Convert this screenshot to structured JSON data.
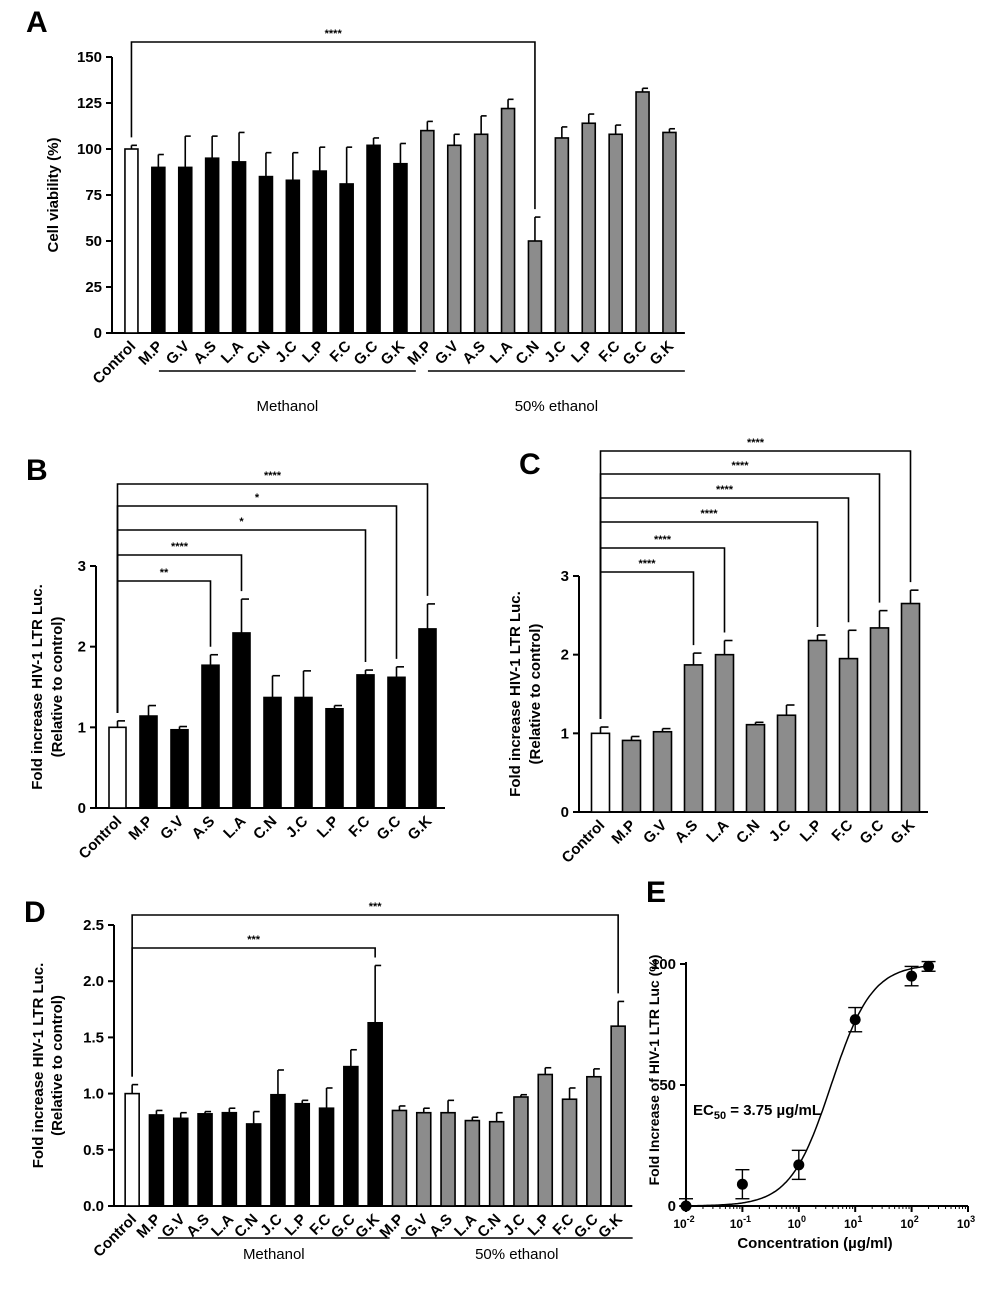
{
  "chart_data": [
    {
      "id": "A",
      "type": "bar",
      "panel_label": "A",
      "ylabel": "Cell viability (%)",
      "ylim": [
        0,
        150
      ],
      "yticks": [
        "0",
        "25",
        "50",
        "75",
        "100",
        "125",
        "150"
      ],
      "categories": [
        "Control",
        "M.P",
        "G.V",
        "A.S",
        "L.A",
        "C.N",
        "J.C",
        "L.P",
        "F.C",
        "G.C",
        "G.K",
        "M.P",
        "G.V",
        "A.S",
        "L.A",
        "C.N",
        "J.C",
        "L.P",
        "F.C",
        "G.C",
        "G.K"
      ],
      "values": [
        100,
        90,
        90,
        95,
        93,
        85,
        83,
        88,
        81,
        102,
        92,
        110,
        102,
        108,
        122,
        50,
        106,
        114,
        108,
        131,
        109
      ],
      "errors": [
        2,
        7,
        17,
        12,
        16,
        13,
        15,
        13,
        20,
        4,
        11,
        5,
        6,
        10,
        5,
        13,
        6,
        5,
        5,
        2,
        2
      ],
      "colors": [
        "white",
        "black",
        "black",
        "black",
        "black",
        "black",
        "black",
        "black",
        "black",
        "black",
        "black",
        "gray",
        "gray",
        "gray",
        "gray",
        "gray",
        "gray",
        "gray",
        "gray",
        "gray",
        "gray"
      ],
      "groups": [
        {
          "label": "Methanol",
          "from": 1,
          "to": 10
        },
        {
          "label": "50% ethanol",
          "from": 11,
          "to": 20
        }
      ],
      "brackets": [
        {
          "from": 0,
          "to": 15,
          "label": "****"
        }
      ]
    },
    {
      "id": "B",
      "type": "bar",
      "panel_label": "B",
      "ylabel": [
        "Fold increase HIV-1 LTR Luc.",
        "(Relative to control)"
      ],
      "ylim": [
        0,
        3
      ],
      "yticks": [
        "0",
        "1",
        "2",
        "3"
      ],
      "categories": [
        "Control",
        "M.P",
        "G.V",
        "A.S",
        "L.A",
        "C.N",
        "J.C",
        "L.P",
        "F.C",
        "G.C",
        "G.K"
      ],
      "values": [
        1.0,
        1.14,
        0.97,
        1.77,
        2.17,
        1.37,
        1.37,
        1.23,
        1.65,
        1.62,
        2.22
      ],
      "errors": [
        0.08,
        0.13,
        0.04,
        0.13,
        0.42,
        0.27,
        0.33,
        0.04,
        0.06,
        0.13,
        0.31
      ],
      "colors": [
        "white",
        "black",
        "black",
        "black",
        "black",
        "black",
        "black",
        "black",
        "black",
        "black",
        "black"
      ],
      "brackets": [
        {
          "from": 0,
          "to": 3,
          "label": "**"
        },
        {
          "from": 0,
          "to": 4,
          "label": "****"
        },
        {
          "from": 0,
          "to": 8,
          "label": "*"
        },
        {
          "from": 0,
          "to": 9,
          "label": "*"
        },
        {
          "from": 0,
          "to": 10,
          "label": "****"
        }
      ]
    },
    {
      "id": "C",
      "type": "bar",
      "panel_label": "C",
      "ylabel": [
        "Fold increase HIV-1 LTR Luc.",
        "(Relative to control)"
      ],
      "ylim": [
        0,
        3
      ],
      "yticks": [
        "0",
        "1",
        "2",
        "3"
      ],
      "categories": [
        "Control",
        "M.P",
        "G.V",
        "A.S",
        "L.A",
        "C.N",
        "J.C",
        "L.P",
        "F.C",
        "G.C",
        "G.K"
      ],
      "values": [
        1.0,
        0.91,
        1.02,
        1.87,
        2.0,
        1.11,
        1.23,
        2.18,
        1.95,
        2.34,
        2.65
      ],
      "errors": [
        0.08,
        0.05,
        0.04,
        0.15,
        0.18,
        0.03,
        0.13,
        0.07,
        0.36,
        0.22,
        0.17
      ],
      "colors": [
        "white",
        "gray",
        "gray",
        "gray",
        "gray",
        "gray",
        "gray",
        "gray",
        "gray",
        "gray",
        "gray"
      ],
      "brackets": [
        {
          "from": 0,
          "to": 3,
          "label": "****"
        },
        {
          "from": 0,
          "to": 4,
          "label": "****"
        },
        {
          "from": 0,
          "to": 7,
          "label": "****"
        },
        {
          "from": 0,
          "to": 8,
          "label": "****"
        },
        {
          "from": 0,
          "to": 9,
          "label": "****"
        },
        {
          "from": 0,
          "to": 10,
          "label": "****"
        }
      ]
    },
    {
      "id": "D",
      "type": "bar",
      "panel_label": "D",
      "ylabel": [
        "Fold increase HIV-1 LTR Luc.",
        "(Relative to control)"
      ],
      "ylim": [
        0,
        2.5
      ],
      "yticks": [
        "0.0",
        "0.5",
        "1.0",
        "1.5",
        "2.0",
        "2.5"
      ],
      "categories": [
        "Control",
        "M.P",
        "G.V",
        "A.S",
        "L.A",
        "C.N",
        "J.C",
        "L.P",
        "F.C",
        "G.C",
        "G.K",
        "M.P",
        "G.V",
        "A.S",
        "L.A",
        "C.N",
        "J.C",
        "L.P",
        "F.C",
        "G.C",
        "G.K"
      ],
      "values": [
        1.0,
        0.81,
        0.78,
        0.82,
        0.83,
        0.73,
        0.99,
        0.91,
        0.87,
        1.24,
        1.63,
        0.85,
        0.83,
        0.83,
        0.76,
        0.75,
        0.97,
        1.17,
        0.95,
        1.15,
        1.6
      ],
      "errors": [
        0.08,
        0.04,
        0.05,
        0.02,
        0.04,
        0.11,
        0.22,
        0.03,
        0.18,
        0.15,
        0.51,
        0.04,
        0.04,
        0.11,
        0.03,
        0.08,
        0.02,
        0.06,
        0.1,
        0.07,
        0.22
      ],
      "colors": [
        "white",
        "black",
        "black",
        "black",
        "black",
        "black",
        "black",
        "black",
        "black",
        "black",
        "black",
        "gray",
        "gray",
        "gray",
        "gray",
        "gray",
        "gray",
        "gray",
        "gray",
        "gray",
        "gray"
      ],
      "groups": [
        {
          "label": "Methanol",
          "from": 1,
          "to": 10
        },
        {
          "label": "50% ethanol",
          "from": 11,
          "to": 20
        }
      ],
      "brackets": [
        {
          "from": 0,
          "to": 10,
          "label": "***"
        },
        {
          "from": 0,
          "to": 20,
          "label": "***"
        }
      ]
    },
    {
      "id": "E",
      "type": "scatter",
      "panel_label": "E",
      "xlabel": "Concentration (µg/ml)",
      "ylabel": "Fold Increase of HIV-1 LTR Luc (%)",
      "xscale": "log",
      "xlim": [
        0.01,
        1000
      ],
      "ylim": [
        0,
        100
      ],
      "yticks": [
        "0",
        "50",
        "100"
      ],
      "xtick_exponents": [
        "-2",
        "-1",
        "0",
        "1",
        "2",
        "3"
      ],
      "x": [
        0.01,
        0.1,
        1,
        10,
        100,
        200
      ],
      "y": [
        0,
        9,
        17,
        77,
        95,
        99
      ],
      "errors": [
        3,
        6,
        6,
        5,
        4,
        2
      ],
      "fit": {
        "model": "sigmoid",
        "ec50": 3.75,
        "bottom": 0,
        "top": 100,
        "hill": 1.2
      },
      "annotation": {
        "prefix": "EC",
        "sub": "50",
        "suffix": " = 3.75 µg/mL"
      }
    }
  ]
}
